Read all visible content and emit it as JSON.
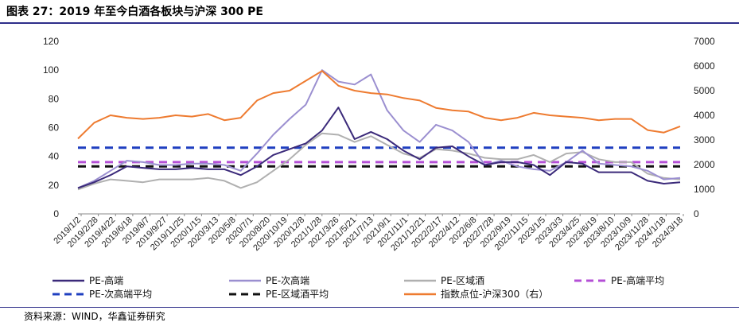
{
  "title": "图表 27：2019 年至今白酒各板块与沪深 300 PE",
  "source": "资料来源：WIND，华鑫证券研究",
  "chart_data": {
    "type": "line",
    "title": "图表 27：2019 年至今白酒各板块与沪深 300 PE",
    "ylim_left": [
      0,
      120
    ],
    "yticks_left": [
      0,
      20,
      40,
      60,
      80,
      100,
      120
    ],
    "ylim_right": [
      0,
      7000
    ],
    "yticks_right": [
      0,
      1000,
      2000,
      3000,
      4000,
      5000,
      6000,
      7000
    ],
    "x_tick_labels": [
      "2019/1/2",
      "2019/2/28",
      "2019/4/22",
      "2019/6/18",
      "2019/8/7",
      "2019/9/27",
      "2019/11/25",
      "2020/1/15",
      "2020/3/13",
      "2020/5/8",
      "2020/7/1",
      "2020/8/20",
      "2020/10/19",
      "2020/12/8",
      "2021/1/28",
      "2021/3/26",
      "2021/5/21",
      "2021/7/13",
      "2021/9/1",
      "2021/11/1",
      "2021/12/21",
      "2022/2/17",
      "2022/4/12",
      "2022/6/8",
      "2022/7/28",
      "2022/9/19",
      "2022/11/15",
      "2023/1/5",
      "2023/3/3",
      "2023/4/25",
      "2023/6/19",
      "2023/8/10",
      "2023/10/9",
      "2023/11/28",
      "2024/1/18",
      "2024/3/18"
    ],
    "legend_position": "bottom",
    "series": [
      {
        "name": "PE-高端",
        "axis": "left",
        "color": "#3b2a7a",
        "style": "solid",
        "values": [
          18,
          22,
          27,
          33,
          32,
          31,
          31,
          32,
          31,
          31,
          27,
          33,
          41,
          45,
          49,
          58,
          74,
          52,
          57,
          52,
          44,
          38,
          46,
          47,
          40,
          34,
          36,
          36,
          34,
          27,
          36,
          35,
          29,
          29,
          29,
          23,
          21,
          22
        ]
      },
      {
        "name": "PE-次高端",
        "axis": "left",
        "color": "#9b8fd0",
        "style": "solid",
        "values": [
          18,
          23,
          30,
          37,
          36,
          34,
          34,
          35,
          35,
          34,
          30,
          42,
          55,
          66,
          76,
          100,
          92,
          90,
          97,
          72,
          58,
          50,
          62,
          58,
          50,
          34,
          37,
          33,
          31,
          30,
          36,
          44,
          35,
          34,
          33,
          30,
          24,
          25
        ]
      },
      {
        "name": "PE-区域酒",
        "axis": "left",
        "color": "#b0b0b0",
        "style": "solid",
        "values": [
          17,
          21,
          24,
          23,
          22,
          24,
          24,
          24,
          25,
          23,
          18,
          22,
          30,
          38,
          48,
          56,
          55,
          50,
          54,
          48,
          42,
          39,
          45,
          44,
          42,
          39,
          38,
          38,
          41,
          36,
          42,
          43,
          38,
          36,
          36,
          28,
          25,
          24
        ]
      },
      {
        "name": "PE-高端平均",
        "axis": "left",
        "color": "#b44fd6",
        "style": "dashed",
        "values": [
          36,
          36,
          36,
          36,
          36,
          36,
          36,
          36,
          36,
          36,
          36,
          36,
          36,
          36,
          36,
          36,
          36,
          36,
          36,
          36,
          36,
          36,
          36,
          36,
          36,
          36,
          36,
          36,
          36,
          36,
          36,
          36,
          36,
          36,
          36,
          36,
          36,
          36
        ]
      },
      {
        "name": "PE-次高端平均",
        "axis": "left",
        "color": "#1f3fc0",
        "style": "dashed",
        "values": [
          46,
          46,
          46,
          46,
          46,
          46,
          46,
          46,
          46,
          46,
          46,
          46,
          46,
          46,
          46,
          46,
          46,
          46,
          46,
          46,
          46,
          46,
          46,
          46,
          46,
          46,
          46,
          46,
          46,
          46,
          46,
          46,
          46,
          46,
          46,
          46,
          46,
          46
        ]
      },
      {
        "name": "PE-区域酒平均",
        "axis": "left",
        "color": "#111111",
        "style": "dashed",
        "values": [
          33,
          33,
          33,
          33,
          33,
          33,
          33,
          33,
          33,
          33,
          33,
          33,
          33,
          33,
          33,
          33,
          33,
          33,
          33,
          33,
          33,
          33,
          33,
          33,
          33,
          33,
          33,
          33,
          33,
          33,
          33,
          33,
          33,
          33,
          33,
          33,
          33,
          33
        ]
      },
      {
        "name": "指数点位-沪深300（右）",
        "axis": "right",
        "color": "#ee7b30",
        "style": "solid",
        "values": [
          3050,
          3700,
          4000,
          3900,
          3850,
          3900,
          4000,
          3950,
          4050,
          3800,
          3900,
          4600,
          4900,
          5000,
          5400,
          5800,
          5200,
          5000,
          4900,
          4850,
          4700,
          4600,
          4300,
          4200,
          4150,
          3900,
          3800,
          3900,
          4100,
          4000,
          3950,
          3900,
          3800,
          3850,
          3850,
          3400,
          3300,
          3550
        ]
      }
    ]
  }
}
